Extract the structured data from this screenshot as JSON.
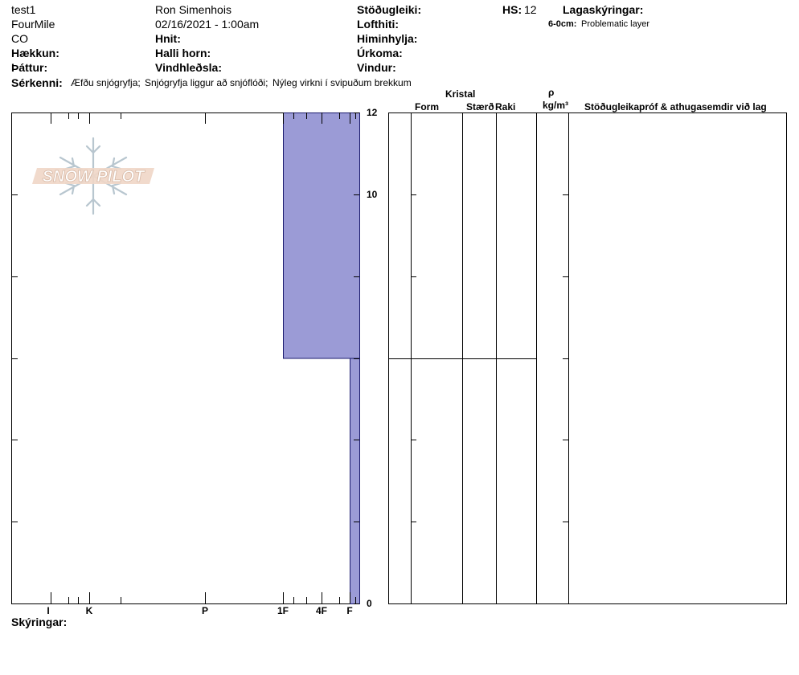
{
  "header": {
    "left": [
      "test1",
      "FourMile",
      "CO"
    ],
    "observer": "Ron Simenhois",
    "datetime": "02/16/2021 - 1:00am",
    "hnit_label": "Hnit:",
    "halli_label": "Halli horn:",
    "vindhledsla_label": "Vindhleðsla:",
    "haekkun_label": "Hækkun:",
    "thattur_label": "Þáttur:",
    "stodugleiki_label": "Stöðugleiki:",
    "lofthiti_label": "Lofthiti:",
    "himinhylja_label": "Himinhylja:",
    "urkoma_label": "Úrkoma:",
    "vindur_label": "Vindur:",
    "hs_label": "HS:",
    "hs_value": "12",
    "lagaskyringar_label": "Lagaskýringar:",
    "layer_note_depth": "6-0cm:",
    "layer_note_text": "Problematic layer",
    "serkenni_label": "Sérkenni:",
    "serkenni_items": [
      "Æfðu snjógryfja;",
      "Snjógryfja liggur að snjóflóði;",
      "Nýleg virkni í svipuðum brekkum"
    ]
  },
  "logo": {
    "text": "SNOW PILOT"
  },
  "table_headers": {
    "kristal": "Kristal",
    "form": "Form",
    "staerd": "Stærð",
    "raki": "Raki",
    "rho": "ρ",
    "density_unit": "kg/m³",
    "stability": "Stöðugleikapróf & athugasemdir við lag"
  },
  "footer": {
    "skyringar_label": "Skýringar:"
  },
  "colors": {
    "layer_fill": "#9b9bd6",
    "layer_stroke": "#1a1a6e"
  },
  "chart_data": {
    "type": "bar",
    "x_axis": {
      "categories": [
        "I",
        "K",
        "P",
        "1F",
        "4F",
        "F"
      ],
      "reversed": true
    },
    "y_axis": {
      "range": [
        0,
        12
      ],
      "ticks": [
        0,
        10,
        12
      ],
      "unit": "cm"
    },
    "layers": [
      {
        "top": 12,
        "bottom": 6,
        "hardness": "1F"
      },
      {
        "top": 6,
        "bottom": 0,
        "hardness": "F"
      }
    ]
  }
}
